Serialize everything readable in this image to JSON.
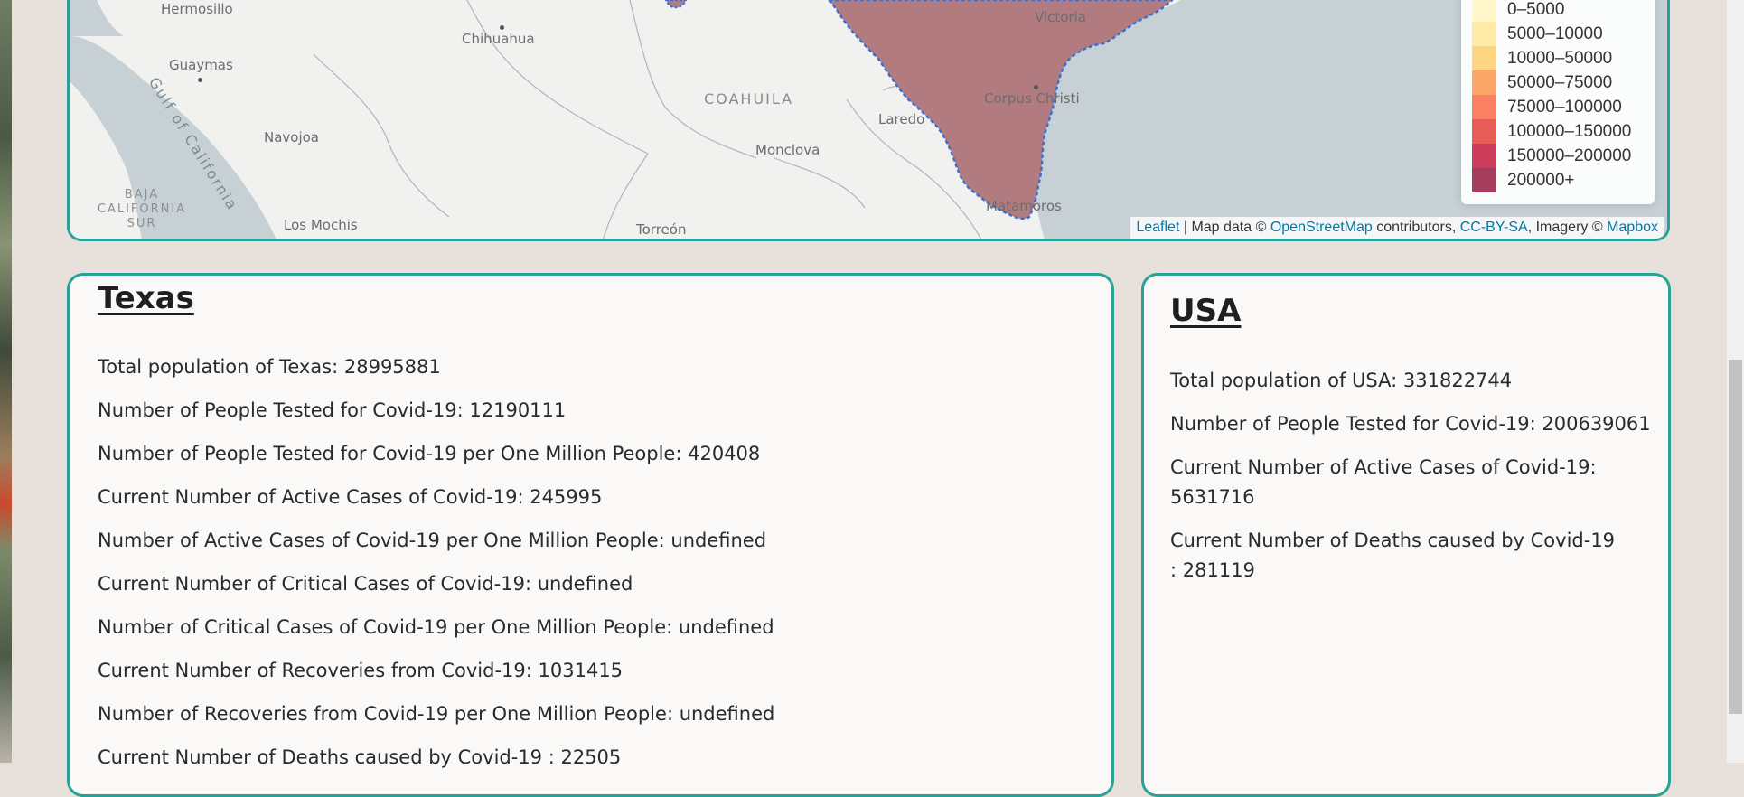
{
  "map": {
    "labels": {
      "hermosillo": "Hermosillo",
      "chihuahua": "Chihuahua",
      "guaymas": "Guaymas",
      "gulf": "Gulf of California",
      "navojoa": "Navojoa",
      "coahuila": "COAHUILA",
      "monclova": "Monclova",
      "laredo": "Laredo",
      "corpus_christi": "Corpus Christi",
      "victoria": "Victoria",
      "baja": "BAJA",
      "california": "CALIFORNIA",
      "sur": "SUR",
      "los_mochis": "Los Mochis",
      "torreon": "Torreón",
      "matamoros": "Matamoros"
    },
    "legend": {
      "items": [
        {
          "label": "0–5000",
          "color": "#fff6c9"
        },
        {
          "label": "5000–10000",
          "color": "#ffeba8"
        },
        {
          "label": "10000–50000",
          "color": "#fed682"
        },
        {
          "label": "50000–75000",
          "color": "#fca66a"
        },
        {
          "label": "75000–100000",
          "color": "#f98062"
        },
        {
          "label": "100000–150000",
          "color": "#e85c58"
        },
        {
          "label": "150000–200000",
          "color": "#cc3d5c"
        },
        {
          "label": "200000+",
          "color": "#a43e5c"
        }
      ]
    },
    "attribution": {
      "leaflet": "Leaflet",
      "separator": " | Map data © ",
      "osm": "OpenStreetMap",
      "contributors": " contributors, ",
      "license": "CC-BY-SA",
      "imagery": ", Imagery © ",
      "mapbox": "Mapbox"
    },
    "colors": {
      "texas_fill": "#b27b80",
      "water": "#c7d1d5",
      "land": "#f1f1ef",
      "border": "#2aa197"
    }
  },
  "texas": {
    "title": "Texas",
    "stats": [
      "Total population of Texas: 28995881",
      "Number of People Tested for Covid-19: 12190111",
      "Number of People Tested for Covid-19 per One Million People: 420408",
      "Current Number of Active Cases of Covid-19: 245995",
      "Number of Active Cases of Covid-19 per One Million People: undefined",
      "Current Number of Critical Cases of Covid-19: undefined",
      "Number of Critical Cases of Covid-19 per One Million People: undefined",
      "Current Number of Recoveries from Covid-19: 1031415",
      "Number of Recoveries from Covid-19 per One Million People: undefined",
      "Current Number of Deaths caused by Covid-19 : 22505"
    ]
  },
  "usa": {
    "title": "USA",
    "stats": [
      "Total population of USA: 331822744",
      "Number of People Tested for Covid-19: 200639061",
      "Current Number of Active Cases of Covid-19: 5631716",
      "Current Number of Deaths caused by Covid-19 : 281119"
    ]
  }
}
